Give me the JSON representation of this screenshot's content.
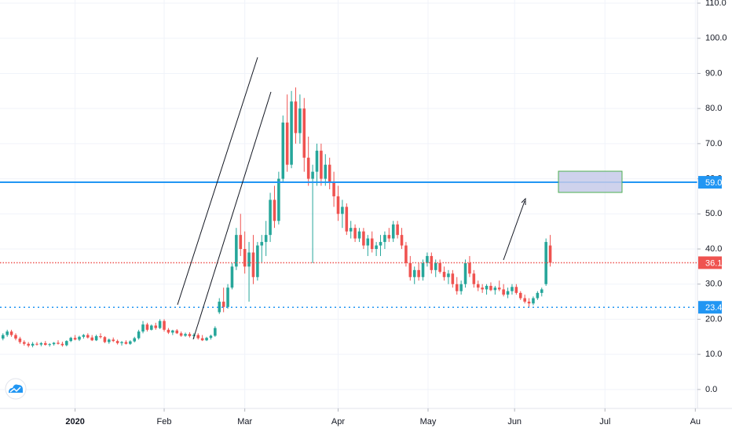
{
  "chart_data": {
    "type": "candlestick",
    "up_color": "#26a69a",
    "down_color": "#ef5350",
    "grid": true,
    "xlim": [
      -0.7,
      163.7
    ],
    "ylim": [
      -5.4,
      110.9
    ],
    "xticks": [
      {
        "value": 17,
        "label": "2020"
      },
      {
        "value": 38,
        "label": "Feb"
      },
      {
        "value": 57,
        "label": "Mar"
      },
      {
        "value": 79,
        "label": "Apr"
      },
      {
        "value": 100.2,
        "label": "May"
      },
      {
        "value": 120.6,
        "label": "Jun"
      },
      {
        "value": 141.9,
        "label": "Jul"
      },
      {
        "value": 163.2,
        "label": "Au"
      }
    ],
    "yticks": [
      {
        "value": 0,
        "label": "0.0"
      },
      {
        "value": 10,
        "label": "10.0"
      },
      {
        "value": 20,
        "label": "20.0"
      },
      {
        "value": 30,
        "label": "30.0"
      },
      {
        "value": 40,
        "label": "40.0"
      },
      {
        "value": 50,
        "label": "50.0"
      },
      {
        "value": 60,
        "label": "60.0"
      },
      {
        "value": 70,
        "label": "70.0"
      },
      {
        "value": 80,
        "label": "80.0"
      },
      {
        "value": 90,
        "label": "90.0"
      },
      {
        "value": 100,
        "label": "100.0"
      },
      {
        "value": 110,
        "label": "110.0"
      }
    ],
    "price_lines": [
      {
        "value": 59,
        "label": "59.0",
        "color": "#2196f3",
        "style": "solid"
      },
      {
        "value": 36.1,
        "label": "36.1",
        "color": "#ef5350",
        "style": "dotted"
      },
      {
        "value": 23.4,
        "label": "23.4",
        "color": "#2196f3",
        "style": "dotted"
      }
    ],
    "ohlc": [
      [
        14.5,
        16,
        14,
        15.5
      ],
      [
        15.5,
        17,
        15,
        16.5
      ],
      [
        16.5,
        17,
        15,
        15.5
      ],
      [
        15.5,
        16,
        14,
        14.5
      ],
      [
        14.5,
        15,
        13,
        13.5
      ],
      [
        13.5,
        14,
        12.5,
        13
      ],
      [
        13,
        13.5,
        12,
        12.5
      ],
      [
        12.5,
        13.5,
        12,
        13
      ],
      [
        13,
        13.5,
        12.5,
        12.8
      ],
      [
        12.8,
        13.5,
        12.3,
        13.2
      ],
      [
        13.2,
        13.8,
        12.5,
        12.7
      ],
      [
        12.7,
        13.2,
        12.2,
        12.9
      ],
      [
        12.9,
        13.5,
        12.5,
        13.3
      ],
      [
        13.3,
        14,
        12.8,
        13
      ],
      [
        13,
        13.6,
        12.2,
        12.6
      ],
      [
        12.6,
        14,
        12.3,
        13.8
      ],
      [
        13.8,
        15,
        13.5,
        14.7
      ],
      [
        14.7,
        15.5,
        14,
        14.2
      ],
      [
        14.2,
        15.3,
        13.8,
        15
      ],
      [
        15,
        15.8,
        14.5,
        15.5
      ],
      [
        15.5,
        16,
        14.5,
        14.8
      ],
      [
        14.8,
        15.5,
        13.8,
        14
      ],
      [
        14,
        15.6,
        13.8,
        15.2
      ],
      [
        15.2,
        16,
        14.5,
        14.9
      ],
      [
        14.9,
        15.2,
        13.2,
        13.5
      ],
      [
        13.5,
        14.5,
        13,
        14.2
      ],
      [
        14.2,
        14.8,
        13.5,
        13.8
      ],
      [
        13.8,
        14.2,
        12.8,
        13.2
      ],
      [
        13.2,
        13.8,
        12.5,
        13.5
      ],
      [
        13.5,
        14,
        12.8,
        13
      ],
      [
        13,
        14,
        12.7,
        13.7
      ],
      [
        13.7,
        15,
        13.4,
        14.6
      ],
      [
        14.6,
        17,
        14.2,
        16.5
      ],
      [
        16.5,
        19.5,
        16,
        18.5
      ],
      [
        18.5,
        19,
        16.5,
        17
      ],
      [
        17,
        18.5,
        16.8,
        18.2
      ],
      [
        18.2,
        19,
        17,
        17.5
      ],
      [
        17.5,
        20,
        17.2,
        19.5
      ],
      [
        19.5,
        20,
        16.5,
        17
      ],
      [
        17,
        17.5,
        15.8,
        16.2
      ],
      [
        16.2,
        17,
        15.5,
        16.8
      ],
      [
        16.8,
        17.2,
        15.8,
        16
      ],
      [
        16,
        16.5,
        15,
        15.3
      ],
      [
        15.3,
        16.2,
        15,
        15.8
      ],
      [
        15.8,
        16.3,
        14.8,
        15.2
      ],
      [
        15.2,
        16,
        14.5,
        15.5
      ],
      [
        15.5,
        16,
        14.2,
        14.6
      ],
      [
        14.6,
        15.5,
        13.8,
        14
      ],
      [
        14,
        15,
        13.8,
        14.7
      ],
      [
        14.7,
        15.6,
        14.2,
        15.3
      ],
      [
        15.3,
        18,
        15,
        17.5
      ],
      [
        22,
        26,
        21.5,
        25
      ],
      [
        25,
        29,
        22,
        23.5
      ],
      [
        23.5,
        30,
        23,
        29
      ],
      [
        29,
        36,
        28.5,
        35
      ],
      [
        35,
        46,
        34,
        44
      ],
      [
        44,
        50,
        38,
        40
      ],
      [
        40,
        45,
        33,
        35
      ],
      [
        35,
        42,
        25,
        39
      ],
      [
        39,
        44,
        30,
        32
      ],
      [
        32,
        42,
        31,
        41
      ],
      [
        41,
        44,
        36,
        42
      ],
      [
        42,
        48,
        38,
        44
      ],
      [
        44,
        56,
        42,
        54
      ],
      [
        54,
        58,
        46,
        48
      ],
      [
        48,
        62,
        47,
        60
      ],
      [
        60,
        78,
        59,
        76
      ],
      [
        76,
        84,
        62,
        64
      ],
      [
        64,
        85,
        63,
        82
      ],
      [
        82,
        86,
        70,
        73
      ],
      [
        73,
        84,
        70,
        80
      ],
      [
        80,
        83,
        62,
        66
      ],
      [
        66,
        72,
        58,
        60
      ],
      [
        60,
        64,
        36,
        62
      ],
      [
        62,
        70,
        58,
        68
      ],
      [
        68,
        70,
        58,
        60
      ],
      [
        60,
        67,
        58,
        64
      ],
      [
        64,
        66,
        57,
        59
      ],
      [
        59,
        62,
        52,
        55
      ],
      [
        55,
        58,
        48,
        50
      ],
      [
        50,
        54,
        46,
        52
      ],
      [
        52,
        53,
        44,
        45
      ],
      [
        45,
        48,
        43,
        46
      ],
      [
        46,
        47,
        42,
        43
      ],
      [
        43,
        46,
        42,
        45
      ],
      [
        45,
        46,
        40,
        41
      ],
      [
        41,
        44,
        38,
        43
      ],
      [
        43,
        45,
        39,
        40
      ],
      [
        40,
        42,
        38,
        41
      ],
      [
        41,
        44,
        38,
        42
      ],
      [
        42,
        45,
        40,
        44
      ],
      [
        44,
        46,
        42,
        43
      ],
      [
        43,
        48,
        42,
        47
      ],
      [
        47,
        48,
        43,
        44
      ],
      [
        44,
        46,
        40,
        41
      ],
      [
        41,
        42,
        35,
        36
      ],
      [
        36,
        38,
        31,
        32
      ],
      [
        32,
        35,
        30,
        34
      ],
      [
        34,
        36,
        31,
        32
      ],
      [
        32,
        37,
        31,
        36
      ],
      [
        36,
        39,
        35,
        38
      ],
      [
        38,
        39,
        33,
        34
      ],
      [
        34,
        37,
        32,
        36
      ],
      [
        36,
        37,
        33,
        33.5
      ],
      [
        33.5,
        35,
        31,
        32
      ],
      [
        32,
        34,
        30,
        33
      ],
      [
        33,
        34,
        29,
        30
      ],
      [
        30,
        32,
        27,
        28
      ],
      [
        28,
        31,
        27,
        30
      ],
      [
        30,
        37,
        29,
        36
      ],
      [
        36,
        38,
        32,
        33
      ],
      [
        33,
        34,
        29,
        30
      ],
      [
        30,
        31,
        28,
        29
      ],
      [
        29,
        30,
        27.5,
        28.5
      ],
      [
        28.5,
        30,
        27,
        29.5
      ],
      [
        29.5,
        30.5,
        28,
        28.3
      ],
      [
        28.3,
        29.5,
        27,
        29
      ],
      [
        29,
        31,
        28,
        28.5
      ],
      [
        28.5,
        30,
        26.5,
        27
      ],
      [
        27,
        29,
        26,
        28
      ],
      [
        28,
        30,
        27,
        29.2
      ],
      [
        29.2,
        30,
        27,
        27.5
      ],
      [
        27.5,
        28,
        25.5,
        26
      ],
      [
        26,
        27,
        24.5,
        25
      ],
      [
        25,
        26,
        23.5,
        24.5
      ],
      [
        24.5,
        26.5,
        24,
        26
      ],
      [
        26,
        28,
        25.5,
        27.5
      ],
      [
        27.5,
        29,
        26.5,
        28.5
      ],
      [
        30,
        43,
        29.5,
        42
      ],
      [
        41,
        44,
        35,
        36.1
      ]
    ]
  }
}
